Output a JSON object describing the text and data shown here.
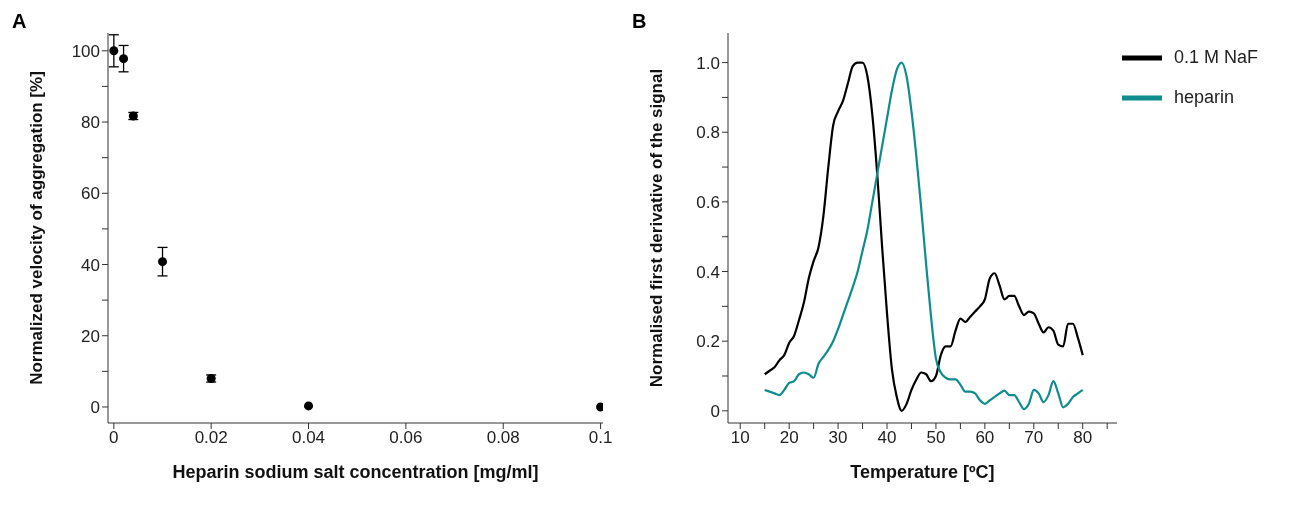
{
  "chart_data": [
    {
      "type": "scatter",
      "title": "A",
      "xlabel": "Heparin sodium salt concentration [mg/ml]",
      "ylabel": "Normalized velocity of aggregation [%]",
      "x": [
        0,
        0.002,
        0.004,
        0.01,
        0.02,
        0.04,
        0.1
      ],
      "series": [
        {
          "color": "#000000",
          "values": [
            100,
            97.8,
            81.7,
            40.8,
            8,
            0.3,
            0
          ],
          "errors": [
            4.5,
            3.7,
            1,
            4,
            1,
            null,
            null
          ]
        }
      ],
      "marker": "circle",
      "grid": false,
      "legend": false,
      "xlim": [
        -0.0012,
        0.1005
      ],
      "xticks": [
        0,
        0.02,
        0.04,
        0.06,
        0.08,
        0.1
      ],
      "ylim": [
        -4.5,
        105
      ],
      "yticks": [
        0,
        {
          "value": 10,
          "label": null
        },
        20,
        {
          "value": 30,
          "label": null
        },
        40,
        {
          "value": 50,
          "label": null
        },
        60,
        {
          "value": 70,
          "label": null
        },
        80,
        {
          "value": 90,
          "label": null
        },
        100
      ]
    },
    {
      "type": "line",
      "title": "B",
      "xlabel": "Temperature [ºC]",
      "ylabel": "Normalised first derivative of the signal",
      "x": [
        15,
        16,
        17,
        18,
        19,
        20,
        21,
        22,
        23,
        24,
        25,
        26,
        27,
        28,
        29,
        30,
        31,
        32,
        33,
        34,
        35,
        36,
        37,
        38,
        39,
        40,
        41,
        42,
        43,
        44,
        45,
        46,
        47,
        48,
        49,
        50,
        51,
        52,
        53,
        54,
        55,
        56,
        57,
        58,
        59,
        60,
        61,
        62,
        63,
        64,
        65,
        66,
        67,
        68,
        69,
        70,
        71,
        72,
        73,
        74,
        75,
        76,
        77,
        78,
        79,
        80
      ],
      "series": [
        {
          "name": "0.1 M NaF",
          "color": "#000000",
          "values": [
            0.105,
            0.115,
            0.125,
            0.145,
            0.16,
            0.195,
            0.215,
            0.26,
            0.31,
            0.38,
            0.43,
            0.47,
            0.56,
            0.7,
            0.82,
            0.86,
            0.89,
            0.94,
            0.99,
            1.0,
            1.0,
            0.96,
            0.85,
            0.68,
            0.47,
            0.28,
            0.12,
            0.04,
            0.0,
            0.02,
            0.06,
            0.09,
            0.11,
            0.105,
            0.085,
            0.1,
            0.16,
            0.185,
            0.185,
            0.23,
            0.265,
            0.255,
            0.27,
            0.285,
            0.3,
            0.32,
            0.38,
            0.395,
            0.36,
            0.32,
            0.33,
            0.33,
            0.3,
            0.275,
            0.285,
            0.28,
            0.25,
            0.225,
            0.24,
            0.23,
            0.19,
            0.185,
            0.25,
            0.25,
            0.21,
            0.16
          ]
        },
        {
          "name": "heparin",
          "color": "#0f8c8c",
          "values": [
            0.06,
            0.055,
            0.05,
            0.045,
            0.06,
            0.08,
            0.085,
            0.105,
            0.11,
            0.105,
            0.095,
            0.135,
            0.155,
            0.175,
            0.2,
            0.235,
            0.275,
            0.315,
            0.355,
            0.4,
            0.46,
            0.52,
            0.6,
            0.68,
            0.76,
            0.84,
            0.92,
            0.98,
            1.0,
            0.96,
            0.86,
            0.73,
            0.58,
            0.42,
            0.27,
            0.15,
            0.11,
            0.095,
            0.09,
            0.09,
            0.075,
            0.055,
            0.055,
            0.05,
            0.03,
            0.02,
            0.03,
            0.04,
            0.05,
            0.058,
            0.045,
            0.045,
            0.025,
            0.005,
            0.02,
            0.06,
            0.05,
            0.025,
            0.045,
            0.085,
            0.05,
            0.01,
            0.02,
            0.04,
            0.05,
            0.06
          ]
        }
      ],
      "marker": "none",
      "line_style": "solid",
      "grid": false,
      "legend": "top right",
      "xlim": [
        7.5,
        87
      ],
      "xticks": [
        10,
        {
          "value": 15,
          "label": null
        },
        20,
        {
          "value": 25,
          "label": null
        },
        30,
        {
          "value": 35,
          "label": null
        },
        40,
        {
          "value": 45,
          "label": null
        },
        50,
        {
          "value": 55,
          "label": null
        },
        60,
        {
          "value": 65,
          "label": null
        },
        70,
        {
          "value": 75,
          "label": null
        },
        80,
        {
          "value": 85,
          "label": null
        }
      ],
      "ylim": [
        -0.035,
        1.085
      ],
      "yticks": [
        0,
        {
          "value": 0.1,
          "label": null
        },
        0.2,
        {
          "value": 0.3,
          "label": null
        },
        0.4,
        {
          "value": 0.5,
          "label": null
        },
        0.6,
        {
          "value": 0.7,
          "label": null
        },
        0.8,
        {
          "value": 0.9,
          "label": null
        },
        {
          "value": 1,
          "label": "1.0"
        }
      ]
    }
  ]
}
